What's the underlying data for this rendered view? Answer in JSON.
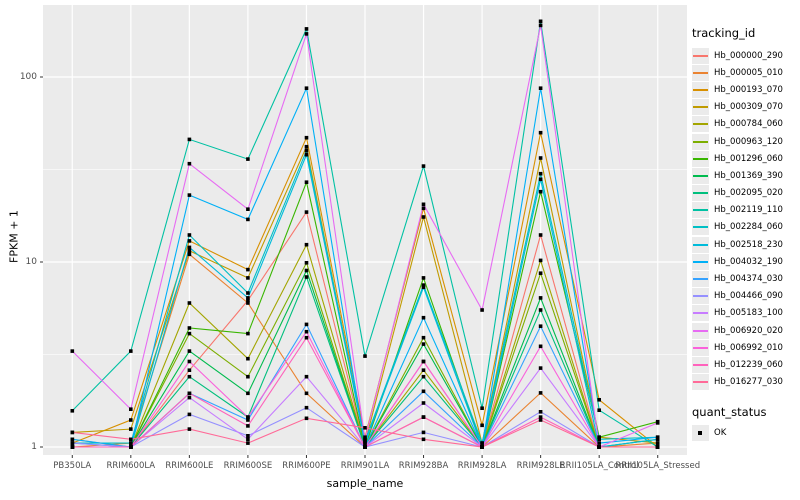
{
  "colors": {
    "panel_bg": "#ebebeb",
    "grid_major": "#ffffff",
    "grid_minor": "#f7f7f7",
    "tick_text": "#4d4d4d",
    "tick_mark": "#333333",
    "marker": "#000000",
    "legend_key_bg": "#ebebeb"
  },
  "y_axis": {
    "label": "FPKM + 1",
    "tick_labels": [
      "1",
      "10",
      "100"
    ]
  },
  "x_axis": {
    "label": "sample_name"
  },
  "legend": {
    "tracking_title": "tracking_id",
    "quant_title": "quant_status",
    "quant_items": [
      {
        "label": "OK"
      }
    ]
  },
  "chart_data": {
    "type": "line",
    "title": "",
    "xlabel": "sample_name",
    "ylabel": "FPKM + 1",
    "yscale": "log10",
    "ylim": [
      0.9,
      245
    ],
    "yticks": [
      1,
      10,
      100
    ],
    "y_minor": [
      3.1623,
      31.623
    ],
    "grid": true,
    "legend_position": "right",
    "marker": "black-square",
    "x_categories": [
      "PB350LA",
      "RRIM600LA",
      "RRIM600LE",
      "RRIM600SE",
      "RRIM600PE",
      "RRIM901LA",
      "RRIM928BA",
      "RRIM928LA",
      "RRIM928LE",
      "RRII105LA_Control",
      "RRII105LA_Stressed"
    ],
    "series": [
      {
        "name": "Hb_000000_290",
        "color": "#F8766D",
        "values": [
          1.1,
          1.0,
          2.6,
          6.2,
          18.6,
          1.0,
          2.9,
          1.0,
          14.0,
          1.0,
          1.0
        ]
      },
      {
        "name": "Hb_000005_010",
        "color": "#EA8331",
        "values": [
          1.0,
          1.05,
          11.0,
          6.0,
          1.95,
          1.0,
          1.45,
          1.0,
          1.96,
          1.0,
          1.05
        ]
      },
      {
        "name": "Hb_000193_070",
        "color": "#D89000",
        "values": [
          1.05,
          1.4,
          13.0,
          9.1,
          47.0,
          1.13,
          19.5,
          1.31,
          50.0,
          1.8,
          1.0
        ]
      },
      {
        "name": "Hb_000309_070",
        "color": "#C09B00",
        "values": [
          1.2,
          1.25,
          11.5,
          8.2,
          42.0,
          1.05,
          17.5,
          1.05,
          36.5,
          1.13,
          1.05
        ]
      },
      {
        "name": "Hb_000784_060",
        "color": "#A3A500",
        "values": [
          1.0,
          1.0,
          6.0,
          3.0,
          12.4,
          1.0,
          2.6,
          1.0,
          10.2,
          1.0,
          1.0
        ]
      },
      {
        "name": "Hb_000963_120",
        "color": "#7CAE00",
        "values": [
          1.0,
          1.0,
          4.1,
          2.4,
          9.9,
          1.0,
          3.9,
          1.0,
          8.7,
          1.0,
          1.0
        ]
      },
      {
        "name": "Hb_001296_060",
        "color": "#39B600",
        "values": [
          1.0,
          1.0,
          4.4,
          4.1,
          27.0,
          1.0,
          8.2,
          1.0,
          24.0,
          1.13,
          1.37
        ]
      },
      {
        "name": "Hb_001369_390",
        "color": "#00BB4E",
        "values": [
          1.0,
          1.0,
          3.3,
          1.95,
          9.0,
          1.0,
          3.6,
          1.0,
          6.4,
          1.0,
          1.1
        ]
      },
      {
        "name": "Hb_002095_020",
        "color": "#00BF7D",
        "values": [
          1.0,
          1.0,
          2.4,
          1.45,
          8.3,
          1.0,
          2.4,
          1.0,
          5.5,
          1.0,
          1.0
        ]
      },
      {
        "name": "Hb_002119_110",
        "color": "#00C1A3",
        "values": [
          1.57,
          3.3,
          46.0,
          36.0,
          182.0,
          3.1,
          33.0,
          1.62,
          200.0,
          1.58,
          1.0
        ]
      },
      {
        "name": "Hb_002284_060",
        "color": "#00BFC4",
        "values": [
          1.05,
          1.05,
          14.0,
          6.8,
          40.0,
          1.08,
          7.5,
          1.05,
          30.0,
          1.1,
          1.13
        ]
      },
      {
        "name": "Hb_002518_230",
        "color": "#00BBDA",
        "values": [
          1.0,
          1.0,
          12.0,
          6.4,
          38.0,
          1.05,
          7.3,
          1.0,
          28.0,
          1.0,
          1.1
        ]
      },
      {
        "name": "Hb_004032_190",
        "color": "#00B0F6",
        "values": [
          1.1,
          1.0,
          23.0,
          17.0,
          87.0,
          1.0,
          5.0,
          1.0,
          87.0,
          1.05,
          1.13
        ]
      },
      {
        "name": "Hb_004374_030",
        "color": "#35A2FF",
        "values": [
          1.05,
          1.0,
          1.95,
          1.4,
          4.6,
          1.0,
          2.0,
          1.0,
          4.5,
          1.0,
          1.0
        ]
      },
      {
        "name": "Hb_004466_090",
        "color": "#9590FF",
        "values": [
          1.05,
          1.0,
          1.5,
          1.15,
          1.63,
          1.0,
          1.2,
          1.0,
          1.55,
          1.0,
          1.0
        ]
      },
      {
        "name": "Hb_005183_100",
        "color": "#C77CFF",
        "values": [
          1.0,
          1.0,
          1.85,
          1.1,
          2.4,
          1.0,
          1.73,
          1.0,
          2.67,
          1.0,
          1.0
        ]
      },
      {
        "name": "Hb_006920_020",
        "color": "#E76BF3",
        "values": [
          3.3,
          1.6,
          34.0,
          19.3,
          171.0,
          1.1,
          20.5,
          5.5,
          190.0,
          1.0,
          1.35
        ]
      },
      {
        "name": "Hb_006992_010",
        "color": "#FA62DB",
        "values": [
          1.0,
          1.0,
          2.9,
          1.45,
          4.2,
          1.0,
          2.9,
          1.0,
          3.5,
          1.0,
          1.0
        ]
      },
      {
        "name": "Hb_012239_060",
        "color": "#FF62BC",
        "values": [
          1.0,
          1.0,
          1.95,
          1.3,
          3.9,
          1.0,
          1.45,
          1.0,
          1.45,
          1.0,
          1.0
        ]
      },
      {
        "name": "Hb_016277_030",
        "color": "#FF6A98",
        "values": [
          1.2,
          1.1,
          1.25,
          1.05,
          1.43,
          1.27,
          1.1,
          1.0,
          1.4,
          1.0,
          1.0
        ]
      }
    ]
  }
}
